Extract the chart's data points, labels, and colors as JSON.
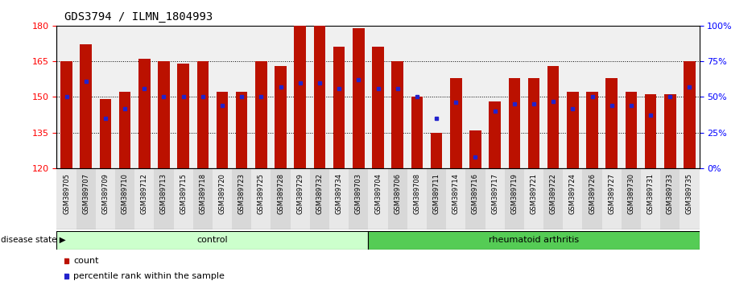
{
  "title": "GDS3794 / ILMN_1804993",
  "samples": [
    "GSM389705",
    "GSM389707",
    "GSM389709",
    "GSM389710",
    "GSM389712",
    "GSM389713",
    "GSM389715",
    "GSM389718",
    "GSM389720",
    "GSM389723",
    "GSM389725",
    "GSM389728",
    "GSM389729",
    "GSM389732",
    "GSM389734",
    "GSM389703",
    "GSM389704",
    "GSM389706",
    "GSM389708",
    "GSM389711",
    "GSM389714",
    "GSM389716",
    "GSM389717",
    "GSM389719",
    "GSM389721",
    "GSM389722",
    "GSM389724",
    "GSM389726",
    "GSM389727",
    "GSM389730",
    "GSM389731",
    "GSM389733",
    "GSM389735"
  ],
  "counts": [
    165,
    172,
    149,
    152,
    166,
    165,
    164,
    165,
    152,
    152,
    165,
    163,
    183,
    183,
    171,
    179,
    171,
    165,
    150,
    135,
    158,
    136,
    148,
    158,
    158,
    163,
    152,
    152,
    158,
    152,
    151,
    151,
    165
  ],
  "percentile_ranks": [
    50,
    61,
    35,
    42,
    56,
    50,
    50,
    50,
    44,
    50,
    50,
    57,
    60,
    60,
    56,
    62,
    56,
    56,
    50,
    35,
    46,
    8,
    40,
    45,
    45,
    47,
    42,
    50,
    44,
    44,
    37,
    50,
    57
  ],
  "control_count": 16,
  "ylim_left": [
    120,
    180
  ],
  "ylim_right": [
    0,
    100
  ],
  "yticks_left": [
    120,
    135,
    150,
    165,
    180
  ],
  "yticks_right": [
    0,
    25,
    50,
    75,
    100
  ],
  "bar_color": "#bb1100",
  "dot_color": "#2222cc",
  "control_color": "#ccffcc",
  "rheumatoid_color": "#55cc55",
  "plot_bg": "#f0f0f0"
}
